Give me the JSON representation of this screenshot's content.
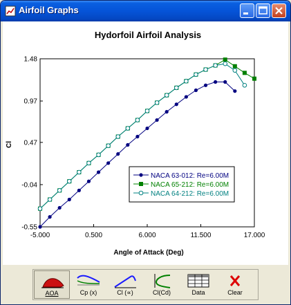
{
  "window": {
    "title": "Airfoil Graphs"
  },
  "chart_data": {
    "type": "line",
    "title": "Hydorfoil Airfoil Analysis",
    "xlabel": "Angle of Attack (Deg)",
    "ylabel": "Cl",
    "xlim": [
      -5.0,
      17.0
    ],
    "ylim": [
      -0.55,
      1.48
    ],
    "xticks": [
      "-5.000",
      "0.500",
      "6.000",
      "11.500",
      "17.000"
    ],
    "yticks": [
      "-0.55",
      "-0.04",
      "0.47",
      "0.97",
      "1.48"
    ],
    "grid": false,
    "legend_position": "center-right",
    "series": [
      {
        "name": "NACA 63-012: Re=6.00M",
        "color": "#000080",
        "marker": "circle-filled",
        "x": [
          -5,
          -4,
          -3,
          -2,
          -1,
          0,
          1,
          2,
          3,
          4,
          5,
          6,
          7,
          8,
          9,
          10,
          11,
          12,
          13,
          14,
          15
        ],
        "y": [
          -0.55,
          -0.43,
          -0.32,
          -0.22,
          -0.11,
          0.0,
          0.11,
          0.22,
          0.33,
          0.44,
          0.54,
          0.64,
          0.74,
          0.84,
          0.93,
          1.02,
          1.1,
          1.16,
          1.2,
          1.2,
          1.09
        ]
      },
      {
        "name": "NACA 65-212: Re=6.00M",
        "color": "#008000",
        "marker": "square-filled",
        "x": [
          -5,
          -4,
          -3,
          -2,
          -1,
          0,
          1,
          2,
          3,
          4,
          5,
          6,
          7,
          8,
          9,
          10,
          11,
          12,
          13,
          14,
          15,
          16,
          17
        ],
        "y": [
          -0.33,
          -0.22,
          -0.11,
          0.0,
          0.11,
          0.22,
          0.32,
          0.43,
          0.54,
          0.64,
          0.74,
          0.85,
          0.95,
          1.04,
          1.13,
          1.21,
          1.29,
          1.35,
          1.4,
          1.47,
          1.39,
          1.31,
          1.24
        ]
      },
      {
        "name": "NACA 64-212: Re=6.00M",
        "color": "#008080",
        "marker": "circle-open",
        "x": [
          -5,
          -4,
          -3,
          -2,
          -1,
          0,
          1,
          2,
          3,
          4,
          5,
          6,
          7,
          8,
          9,
          10,
          11,
          12,
          13,
          14,
          15,
          16
        ],
        "y": [
          -0.33,
          -0.22,
          -0.11,
          0.0,
          0.11,
          0.22,
          0.32,
          0.43,
          0.54,
          0.64,
          0.74,
          0.85,
          0.95,
          1.04,
          1.13,
          1.21,
          1.29,
          1.35,
          1.4,
          1.42,
          1.34,
          1.16
        ]
      }
    ]
  },
  "toolbar": {
    "buttons": [
      {
        "label": "AOA",
        "icon": "aoa-airfoil-icon"
      },
      {
        "label": "Cp (x)",
        "icon": "cp-curve-icon"
      },
      {
        "label": "Cl (∝)",
        "icon": "cl-alpha-curve-icon"
      },
      {
        "label": "Cl(Cd)",
        "icon": "cl-cd-polar-icon"
      },
      {
        "label": "Data",
        "icon": "data-table-icon"
      },
      {
        "label": "Clear",
        "icon": "clear-x-icon"
      }
    ]
  }
}
